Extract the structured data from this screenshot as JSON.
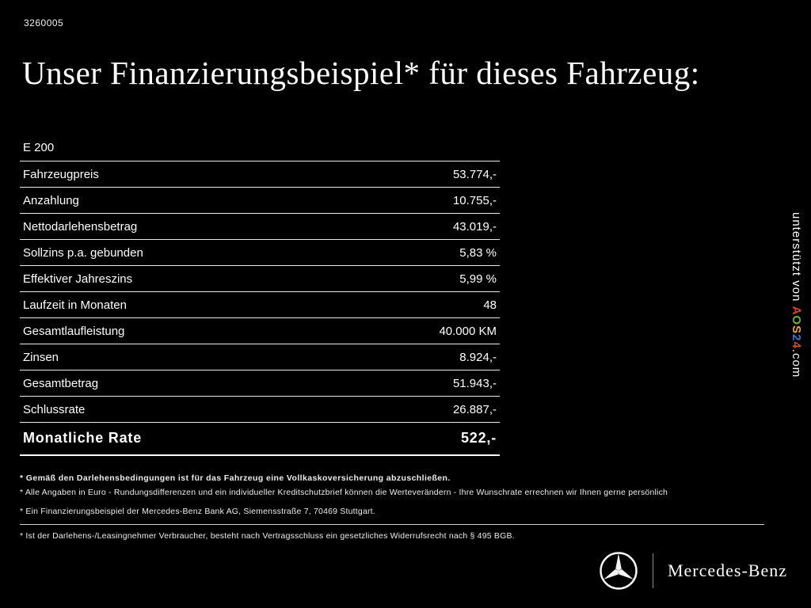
{
  "page": {
    "id": "3260005",
    "title": "Unser Finanzierungsbeispiel* für dieses Fahrzeug:"
  },
  "financing_table": {
    "model": "E 200",
    "rows": [
      {
        "label": "Fahrzeugpreis",
        "value": "53.774,-"
      },
      {
        "label": "Anzahlung",
        "value": "10.755,-"
      },
      {
        "label": "Nettodarlehensbetrag",
        "value": "43.019,-"
      },
      {
        "label": "Sollzins p.a. gebunden",
        "value": "5,83 %"
      },
      {
        "label": "Effektiver Jahreszins",
        "value": "5,99 %"
      },
      {
        "label": "Laufzeit in Monaten",
        "value": "48"
      },
      {
        "label": "Gesamtlaufleistung",
        "value": "40.000 KM"
      },
      {
        "label": "Zinsen",
        "value": "8.924,-"
      },
      {
        "label": "Gesamtbetrag",
        "value": "51.943,-"
      },
      {
        "label": "Schlussrate",
        "value": "26.887,-"
      }
    ],
    "total": {
      "label": "Monatliche Rate",
      "value": "522,-"
    }
  },
  "footnotes": [
    "* Gemäß den Darlehensbedingungen ist für das Fahrzeug eine Vollkaskoversicherung abzuschließen.",
    "* Alle Angaben in Euro - Rundungsdifferenzen und ein individueller Kreditschutzbrief können die Werteverändern - Ihre Wunschrate errechnen wir Ihnen gerne persönlich",
    "* Ein Finanzierungsbeispiel der Mercedes-Benz Bank AG, Siemensstraße 7, 70469 Stuttgart.",
    "* Ist der Darlehens-/Leasingnehmer Verbraucher, besteht nach Vertragsschluss ein gesetzliches Widerrufsrecht nach § 495 BGB."
  ],
  "watermark": {
    "prefix": "unterstützt von ",
    "brand_letters": [
      {
        "char": "A",
        "color": "#d9442f"
      },
      {
        "char": "O",
        "color": "#6eae3d"
      },
      {
        "char": "S",
        "color": "#f0a32e"
      },
      {
        "char": "2",
        "color": "#3a76c9"
      },
      {
        "char": "4",
        "color": "#d9442f"
      }
    ],
    "suffix": ".com"
  },
  "footer": {
    "brand": "Mercedes-Benz"
  },
  "colors": {
    "background": "#000000",
    "text": "#ffffff",
    "rule": "#e9e9e9"
  }
}
